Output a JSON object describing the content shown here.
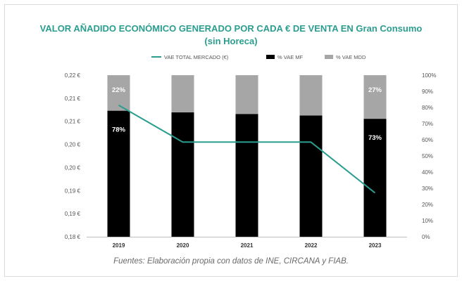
{
  "chart_data": {
    "type": "bar",
    "title": "VALOR AÑADIDO ECONÓMICO GENERADO POR CADA € DE VENTA EN Gran Consumo",
    "subtitle": "(sin Horeca)",
    "categories": [
      "2019",
      "2020",
      "2021",
      "2022",
      "2023"
    ],
    "legend": [
      "VAE TOTAL MERCADO (€)",
      "% VAE MF",
      "% VAE MDD"
    ],
    "legend_position": "top",
    "left_axis": {
      "ticks": [
        "0,18 €",
        "0,19 €",
        "0,19 €",
        "0,20 €",
        "0,20 €",
        "0,21 €",
        "0,21 €",
        "0,22 €"
      ],
      "ylim": [
        0.185,
        0.22
      ]
    },
    "right_axis": {
      "ticks": [
        "0%",
        "10%",
        "20%",
        "30%",
        "40%",
        "50%",
        "60%",
        "70%",
        "80%",
        "90%",
        "100%"
      ],
      "ylim": [
        0,
        100
      ]
    },
    "series": [
      {
        "name": "% VAE MF",
        "type": "stacked-bar",
        "axis": "right",
        "color": "#000000",
        "values": [
          78,
          77,
          76,
          75,
          73
        ]
      },
      {
        "name": "% VAE MDD",
        "type": "stacked-bar",
        "axis": "right",
        "color": "#a6a6a6",
        "values": [
          22,
          23,
          24,
          25,
          27
        ]
      },
      {
        "name": "VAE TOTAL MERCADO (€)",
        "type": "line",
        "axis": "left",
        "color": "#2a9d8f",
        "values": [
          0.2135,
          0.2055,
          0.2055,
          0.2055,
          0.1945
        ]
      }
    ],
    "data_labels": [
      {
        "series": 0,
        "index": 0,
        "text": "78%"
      },
      {
        "series": 1,
        "index": 0,
        "text": "22%"
      },
      {
        "series": 0,
        "index": 4,
        "text": "73%"
      },
      {
        "series": 1,
        "index": 4,
        "text": "27%"
      }
    ],
    "grid": false
  },
  "source_text": "Fuentes: Elaboración propia con datos de INE, CIRCANA y FIAB."
}
